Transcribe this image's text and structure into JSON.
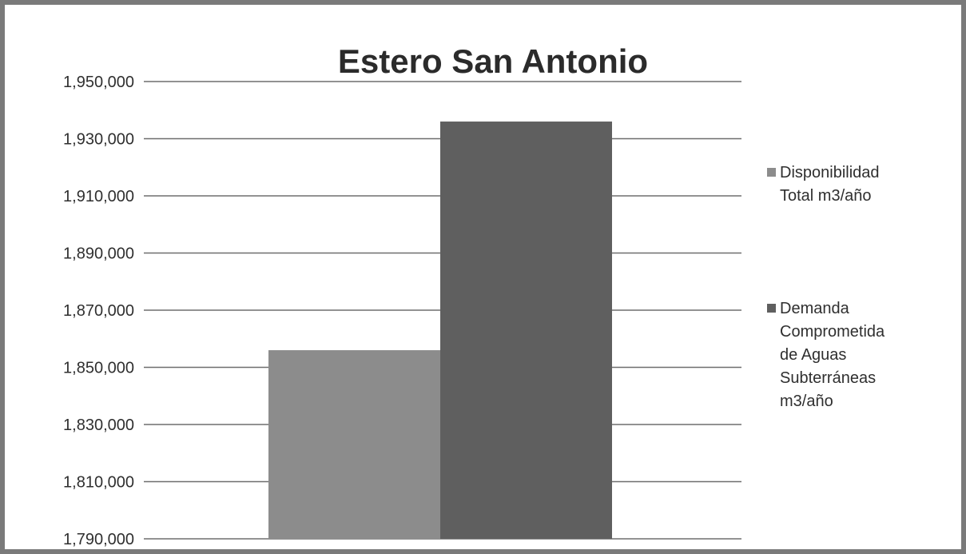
{
  "chart_data": {
    "type": "bar",
    "title": "Estero San Antonio",
    "xlabel": "",
    "ylabel": "",
    "categories": [
      ""
    ],
    "series": [
      {
        "name": "Disponibilidad Total m3/año",
        "values": [
          1856000
        ],
        "color": "#8c8c8c"
      },
      {
        "name": "Demanda Comprometida de Aguas Subterráneas m3/año",
        "values": [
          1936000
        ],
        "color": "#5f5f5f"
      }
    ],
    "ylim": [
      1790000,
      1950000
    ],
    "yticks": [
      "1,790,000",
      "1,810,000",
      "1,830,000",
      "1,850,000",
      "1,870,000",
      "1,890,000",
      "1,910,000",
      "1,930,000",
      "1,950,000"
    ],
    "grid": true,
    "legend_position": "right",
    "legend": {
      "items": [
        {
          "lines": [
            "Disponibilidad",
            "Total m3/año"
          ]
        },
        {
          "lines": [
            "Demanda",
            "Comprometida",
            "de Aguas",
            "Subterráneas",
            "m3/año"
          ]
        }
      ]
    }
  }
}
